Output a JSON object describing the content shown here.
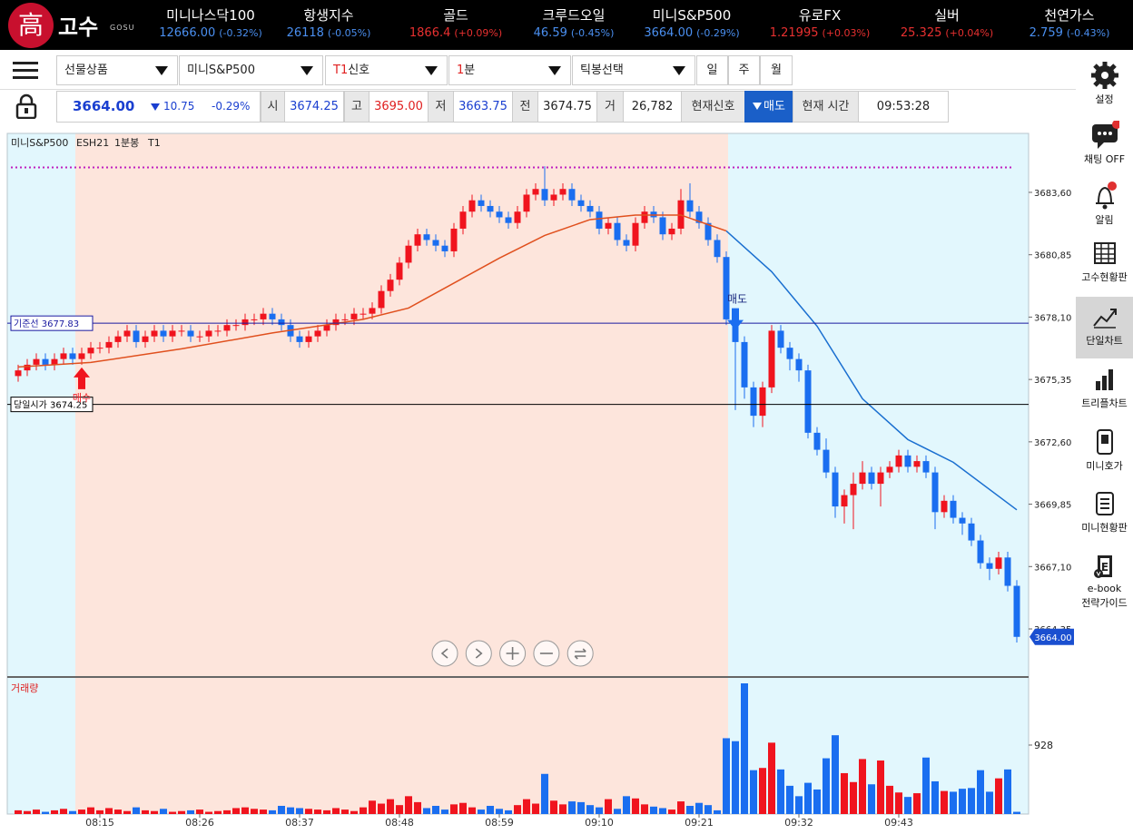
{
  "header": {
    "logo_mark": "高",
    "logo": "고수",
    "logo_sub": "GOSU",
    "tickers": [
      {
        "name": "미니나스닥100",
        "price": "12666.00",
        "change": "(-0.32%)",
        "color": "#4a8ff0"
      },
      {
        "name": "항생지수",
        "price": "26118",
        "change": "(-0.05%)",
        "color": "#4a8ff0"
      },
      {
        "name": "골드",
        "price": "1866.4",
        "change": "(+0.09%)",
        "color": "#e83030"
      },
      {
        "name": "크루드오일",
        "price": "46.59",
        "change": "(-0.45%)",
        "color": "#4a8ff0"
      },
      {
        "name": "미니S&P500",
        "price": "3664.00",
        "change": "(-0.29%)",
        "color": "#4a8ff0"
      },
      {
        "name": "유로FX",
        "price": "1.21995",
        "change": "(+0.03%)",
        "color": "#e83030"
      },
      {
        "name": "실버",
        "price": "25.325",
        "change": "(+0.04%)",
        "color": "#e83030"
      },
      {
        "name": "천연가스",
        "price": "2.759",
        "change": "(-0.43%)",
        "color": "#4a8ff0"
      }
    ]
  },
  "toolbar": {
    "product": "선물상품",
    "symbol": "미니S&P500",
    "signal_prefix": "T1",
    "signal": "신호",
    "interval_prefix": "1",
    "interval": "분",
    "tick": "틱봉선택",
    "periods": [
      "일",
      "주",
      "월"
    ]
  },
  "quote": {
    "price": "3664.00",
    "change": "10.75",
    "change_pct": "-0.29%",
    "open_label": "시",
    "open": "3674.25",
    "high_label": "고",
    "high": "3695.00",
    "low_label": "저",
    "low": "3663.75",
    "prev_label": "전",
    "prev": "3674.75",
    "volume_label": "거",
    "volume": "26,782",
    "signal_label": "현재신호",
    "signal": "매도",
    "time_label": "현재 시간",
    "time": "09:53:28"
  },
  "sidebar": {
    "selected": 4,
    "items": [
      {
        "lines": [
          "설정"
        ]
      },
      {
        "lines": [
          "채팅 OFF"
        ]
      },
      {
        "lines": [
          "알림"
        ]
      },
      {
        "lines": [
          "고수현황판"
        ]
      },
      {
        "lines": [
          "단일차트"
        ]
      },
      {
        "lines": [
          "트리플차트"
        ]
      },
      {
        "lines": [
          "미니호가"
        ]
      },
      {
        "lines": [
          "미니현황판"
        ]
      },
      {
        "lines": [
          "e-book",
          "전략가이드"
        ]
      }
    ]
  },
  "chart_data": {
    "type": "candlestick",
    "title": "미니S&P500",
    "symbol": "ESH21",
    "interval": "1분봉",
    "signal_name": "T1",
    "up_color": "#f0141e",
    "down_color": "#1a6ef0",
    "xlim": [
      -1.2,
      111.3
    ],
    "xticks": [
      {
        "value": 9,
        "label": "08:15"
      },
      {
        "value": 20,
        "label": "08:26"
      },
      {
        "value": 31,
        "label": "08:37"
      },
      {
        "value": 42,
        "label": "08:48"
      },
      {
        "value": 53,
        "label": "08:59"
      },
      {
        "value": 64,
        "label": "09:10"
      },
      {
        "value": 75,
        "label": "09:21"
      },
      {
        "value": 86,
        "label": "09:32"
      },
      {
        "value": 97,
        "label": "09:43"
      }
    ],
    "ylim": [
      3662.27,
      3686.2
    ],
    "yticks": [
      {
        "value": 3683.6,
        "label": "3683,60"
      },
      {
        "value": 3680.85,
        "label": "3680,85"
      },
      {
        "value": 3678.1,
        "label": "3678,10"
      },
      {
        "value": 3675.35,
        "label": "3675,35"
      },
      {
        "value": 3672.6,
        "label": "3672,60"
      },
      {
        "value": 3669.85,
        "label": "3669,85"
      },
      {
        "value": 3667.1,
        "label": "3667,10"
      },
      {
        "value": 3664.35,
        "label": "3664,35"
      }
    ],
    "open": [
      3675.5,
      3675.75,
      3676,
      3676.25,
      3676,
      3676.25,
      3676.5,
      3676.25,
      3676.5,
      3676.75,
      3676.75,
      3677,
      3677.25,
      3677.5,
      3677,
      3677.25,
      3677.5,
      3677.25,
      3677.5,
      3677.5,
      3677.25,
      3677.25,
      3677.5,
      3677.5,
      3677.75,
      3677.75,
      3678,
      3678,
      3678.25,
      3678,
      3677.75,
      3677.25,
      3677,
      3677.25,
      3677.5,
      3677.75,
      3678,
      3678,
      3678.25,
      3678.25,
      3678.5,
      3679.25,
      3679.75,
      3680.5,
      3681.25,
      3681.75,
      3681.5,
      3681.25,
      3681,
      3682,
      3682.75,
      3683.25,
      3683,
      3682.75,
      3682.5,
      3682.25,
      3682.75,
      3683.5,
      3683.75,
      3683.25,
      3683.5,
      3683.75,
      3683.25,
      3683,
      3682.75,
      3682,
      3682.25,
      3681.5,
      3681.25,
      3682.25,
      3682.75,
      3682.5,
      3681.75,
      3682,
      3683.25,
      3682.75,
      3682.25,
      3681.5,
      3680.75,
      3678,
      3677,
      3675,
      3673.75,
      3675,
      3677.5,
      3676.75,
      3676.25,
      3675.75,
      3673,
      3672.25,
      3671.25,
      3669.75,
      3670.25,
      3670.75,
      3671.25,
      3670.75,
      3671.25,
      3671.5,
      3672,
      3671.5,
      3671.75,
      3671.25,
      3669.5,
      3670,
      3669.25,
      3669,
      3668.25,
      3667.25,
      3667,
      3667.5,
      3666.25
    ],
    "high": [
      3676,
      3676.25,
      3676.5,
      3676.5,
      3676.5,
      3676.75,
      3676.75,
      3676.75,
      3677,
      3677,
      3677.25,
      3677.5,
      3677.75,
      3677.75,
      3677.5,
      3677.75,
      3677.75,
      3677.75,
      3677.75,
      3677.75,
      3677.5,
      3677.75,
      3677.75,
      3678,
      3678,
      3678.25,
      3678.25,
      3678.5,
      3678.5,
      3678.25,
      3678,
      3677.5,
      3677.5,
      3677.75,
      3678,
      3678.25,
      3678.25,
      3678.5,
      3678.5,
      3678.75,
      3679.5,
      3680,
      3680.75,
      3681.5,
      3682,
      3682,
      3681.75,
      3681.5,
      3682.25,
      3683,
      3683.5,
      3683.5,
      3683.25,
      3683,
      3682.75,
      3683,
      3683.75,
      3684,
      3684.75,
      3683.75,
      3684,
      3684,
      3683.5,
      3683.25,
      3683,
      3682.5,
      3682.5,
      3681.75,
      3682.5,
      3683,
      3683,
      3682.75,
      3682.25,
      3683.75,
      3684,
      3683,
      3682.5,
      3681.75,
      3681,
      3678.25,
      3677.25,
      3675.25,
      3675.25,
      3677.75,
      3677.75,
      3677,
      3676.5,
      3676,
      3673.25,
      3672.75,
      3671.5,
      3670.5,
      3671.25,
      3671.75,
      3671.5,
      3671.5,
      3671.75,
      3672.25,
      3672.25,
      3672,
      3672,
      3671.5,
      3670.25,
      3670.25,
      3669.5,
      3669.25,
      3668.5,
      3667.5,
      3667.75,
      3667.75,
      3666.5
    ],
    "low": [
      3675.25,
      3675.5,
      3675.75,
      3675.75,
      3675.75,
      3676,
      3676,
      3676,
      3676.25,
      3676.5,
      3676.5,
      3676.75,
      3677,
      3676.75,
      3676.75,
      3677,
      3677,
      3677,
      3677.25,
      3677,
      3677,
      3677,
      3677.25,
      3677.25,
      3677.5,
      3677.5,
      3677.75,
      3677.75,
      3677.75,
      3677.5,
      3677,
      3676.75,
      3676.75,
      3677,
      3677.25,
      3677.5,
      3677.75,
      3677.75,
      3678,
      3678,
      3678.25,
      3679,
      3679.5,
      3680.25,
      3681,
      3681.25,
      3681,
      3680.75,
      3680.75,
      3681.75,
      3682.5,
      3682.75,
      3682.5,
      3682.25,
      3682,
      3682,
      3682.5,
      3683.25,
      3683,
      3683,
      3683.25,
      3683,
      3682.75,
      3682.5,
      3681.75,
      3681.75,
      3681.25,
      3681,
      3681,
      3682,
      3682.25,
      3681.5,
      3681.5,
      3681.75,
      3682.5,
      3682,
      3681.25,
      3680.5,
      3677.75,
      3674,
      3674.5,
      3673.25,
      3673.25,
      3674.75,
      3676.5,
      3675.75,
      3675.25,
      3672.75,
      3672,
      3671,
      3669.25,
      3669,
      3668.75,
      3670.5,
      3670.5,
      3669.75,
      3671,
      3671.25,
      3671.25,
      3671.25,
      3671,
      3668.75,
      3669.25,
      3669,
      3668.5,
      3668,
      3667,
      3666.5,
      3666.75,
      3666,
      3663.75
    ],
    "close": [
      3675.75,
      3676,
      3676.25,
      3676,
      3676.25,
      3676.5,
      3676.25,
      3676.5,
      3676.75,
      3676.75,
      3677,
      3677.25,
      3677.5,
      3677,
      3677.25,
      3677.5,
      3677.25,
      3677.5,
      3677.5,
      3677.25,
      3677.25,
      3677.5,
      3677.5,
      3677.75,
      3677.75,
      3678,
      3678,
      3678.25,
      3678,
      3677.75,
      3677.25,
      3677,
      3677.25,
      3677.5,
      3677.75,
      3678,
      3678,
      3678.25,
      3678.25,
      3678.5,
      3679.25,
      3679.75,
      3680.5,
      3681.25,
      3681.75,
      3681.5,
      3681.25,
      3681,
      3682,
      3682.75,
      3683.25,
      3683,
      3682.75,
      3682.5,
      3682.25,
      3682.75,
      3683.5,
      3683.75,
      3683.25,
      3683.5,
      3683.75,
      3683.25,
      3683,
      3682.75,
      3682,
      3682.25,
      3681.5,
      3681.25,
      3682.25,
      3682.75,
      3682.5,
      3681.75,
      3682,
      3683.25,
      3682.75,
      3682.25,
      3681.5,
      3680.75,
      3678,
      3677,
      3675,
      3673.75,
      3675,
      3677.5,
      3676.75,
      3676.25,
      3675.75,
      3673,
      3672.25,
      3671.25,
      3669.75,
      3670.25,
      3670.75,
      3671.25,
      3670.75,
      3671.25,
      3671.5,
      3672,
      3671.5,
      3671.75,
      3671.25,
      3669.5,
      3670,
      3669.25,
      3669,
      3668.25,
      3667.25,
      3667,
      3667.5,
      3666.25,
      3664
    ],
    "last_price_label": "3664.00",
    "volume_label": "거래량",
    "volume_ylim": [
      0,
      1819
    ],
    "volume_yticks": [
      928
    ],
    "volume": [
      50,
      40,
      60,
      30,
      50,
      70,
      40,
      60,
      90,
      50,
      80,
      60,
      40,
      90,
      50,
      40,
      70,
      30,
      40,
      50,
      60,
      30,
      40,
      50,
      80,
      90,
      70,
      60,
      50,
      110,
      90,
      80,
      70,
      60,
      50,
      80,
      60,
      40,
      90,
      180,
      140,
      200,
      120,
      240,
      160,
      80,
      110,
      60,
      130,
      150,
      90,
      60,
      110,
      70,
      50,
      120,
      200,
      140,
      540,
      180,
      130,
      170,
      160,
      120,
      90,
      200,
      70,
      240,
      210,
      130,
      100,
      80,
      60,
      170,
      110,
      150,
      120,
      50,
      1020,
      980,
      1758,
      590,
      620,
      960,
      600,
      380,
      240,
      420,
      330,
      750,
      1060,
      550,
      430,
      740,
      400,
      720,
      380,
      290,
      230,
      280,
      760,
      440,
      310,
      300,
      340,
      350,
      590,
      300,
      480,
      600,
      30
    ],
    "ma_segments": [
      {
        "color": "#e0501e",
        "x": [
          0,
          8,
          18,
          28,
          38,
          43,
          48,
          53,
          58,
          63,
          68,
          73,
          78
        ],
        "values": [
          3675.9,
          3676.1,
          3676.7,
          3677.4,
          3678,
          3678.5,
          3679.6,
          3680.7,
          3681.7,
          3682.4,
          3682.6,
          3682.6,
          3681.9
        ]
      },
      {
        "color": "#1a6fd0",
        "x": [
          78,
          83,
          88,
          93,
          98,
          103,
          110
        ],
        "values": [
          3681.9,
          3680.1,
          3677.7,
          3674.5,
          3672.7,
          3671.7,
          3669.6
        ]
      }
    ],
    "regions": [
      {
        "from": -1.2,
        "to": 6.3,
        "color": "#e2f7fd"
      },
      {
        "from": 6.3,
        "to": 78.2,
        "color": "#fde5dc"
      },
      {
        "from": 78.2,
        "to": 111.3,
        "color": "#e2f7fd"
      }
    ],
    "reference_lines": [
      {
        "label": "기준선 3677.83",
        "value": 3677.83,
        "color": "#1a1aa0"
      },
      {
        "label": "당일시가 3674.25",
        "value": 3674.25,
        "color": "#000000"
      }
    ],
    "dotted_line": {
      "value": 3684.7,
      "color": "#c020c0"
    },
    "signals": [
      {
        "label": "매수",
        "x": 7,
        "direction": "buy",
        "color": "#f0141e"
      },
      {
        "label": "매도",
        "x": 79,
        "direction": "sell",
        "color": "#1a6ef0"
      }
    ]
  }
}
